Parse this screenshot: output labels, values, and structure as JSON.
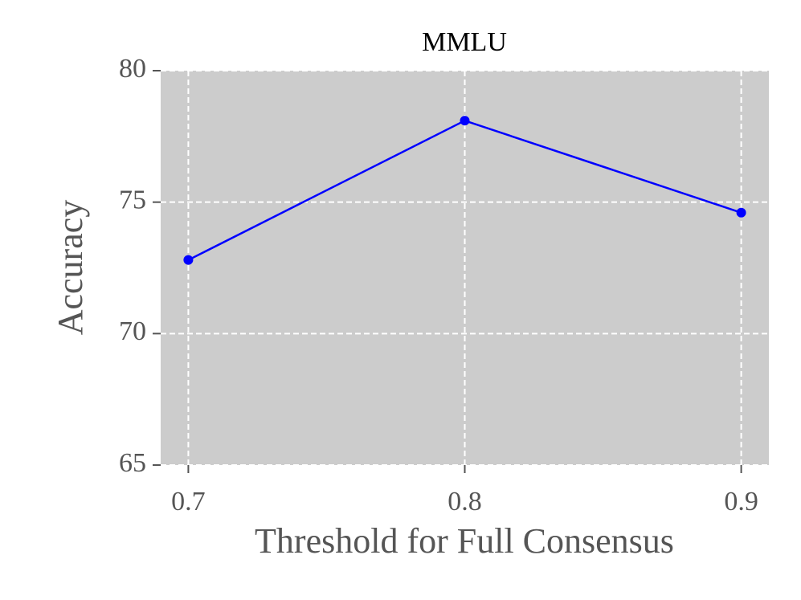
{
  "chart_data": {
    "type": "line",
    "title": "MMLU",
    "x_label": "Threshold for Full Consensus",
    "y_label": "Accuracy",
    "x": [
      0.7,
      0.8,
      0.9
    ],
    "series": [
      {
        "name": "MMLU",
        "color": "#0000ff",
        "values": [
          72.8,
          78.1,
          74.6
        ]
      }
    ],
    "xlim": [
      0.69,
      0.91
    ],
    "xticks": [
      0.7,
      0.8,
      0.9
    ],
    "ylim": [
      65,
      80
    ],
    "yticks": [
      65,
      70,
      75,
      80
    ],
    "grid": true
  }
}
